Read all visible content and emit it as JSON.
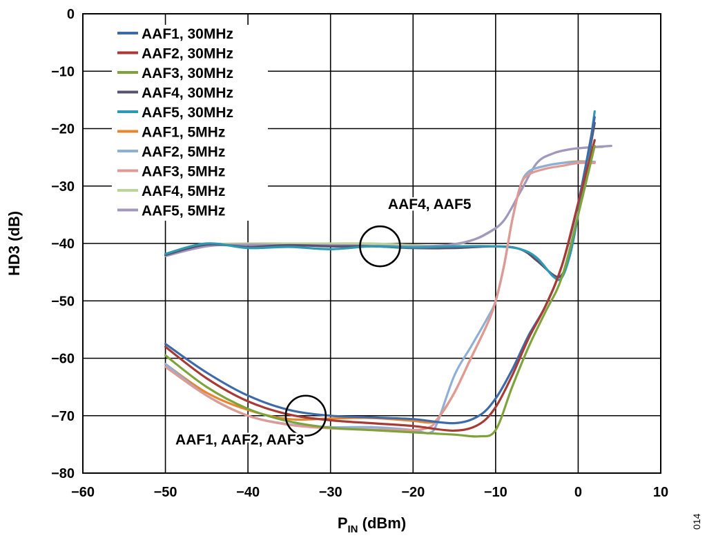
{
  "chart_data": {
    "type": "line",
    "xlabel": "P",
    "xlabel_sub": "IN",
    "xlabel_unit": " (dBm)",
    "ylabel": "HD3 (dB)",
    "xlim": [
      -60,
      10
    ],
    "ylim": [
      -80,
      0
    ],
    "xticks": [
      -60,
      -50,
      -40,
      -30,
      -20,
      -10,
      0,
      10
    ],
    "yticks": [
      0,
      -10,
      -20,
      -30,
      -40,
      -50,
      -60,
      -70,
      -80
    ],
    "xtick_labels": [
      "−60",
      "−50",
      "−40",
      "−30",
      "−20",
      "−10",
      "0",
      "10"
    ],
    "ytick_labels": [
      "0",
      "−10",
      "−20",
      "−30",
      "−40",
      "−50",
      "−60",
      "−70",
      "−80"
    ],
    "grid": true,
    "legend_position": "top-left",
    "annotations": [
      {
        "text": "AAF4, AAF5",
        "circle_at": [
          -24,
          -40.5
        ],
        "text_at": [
          -18,
          -34
        ]
      },
      {
        "text": "AAF1, AAF2, AAF3",
        "circle_at": [
          -33,
          -70
        ],
        "text_at": [
          -41,
          -75
        ]
      }
    ],
    "side_code": "014",
    "series": [
      {
        "name": "AAF1, 30MHz",
        "color": "#3f6aa8",
        "x": [
          -50,
          -45,
          -40,
          -35,
          -30,
          -25,
          -20,
          -15,
          -12,
          -10,
          -8,
          -6,
          -4,
          -2,
          0,
          2
        ],
        "y": [
          -57.5,
          -62.5,
          -66.5,
          -69,
          -70,
          -70.3,
          -70.6,
          -71.3,
          -70,
          -67,
          -62,
          -56,
          -51,
          -44,
          -33,
          -18
        ]
      },
      {
        "name": "AAF2, 30MHz",
        "color": "#a83a35",
        "x": [
          -50,
          -45,
          -40,
          -35,
          -30,
          -25,
          -20,
          -15,
          -12,
          -10,
          -8,
          -6,
          -4,
          -2,
          0,
          2
        ],
        "y": [
          -58,
          -63.5,
          -67.5,
          -69.8,
          -70.8,
          -71.3,
          -71.8,
          -72.6,
          -71.5,
          -68.5,
          -63,
          -56.5,
          -51,
          -44,
          -33,
          -22
        ]
      },
      {
        "name": "AAF3, 30MHz",
        "color": "#7fa33b",
        "x": [
          -50,
          -45,
          -40,
          -35,
          -30,
          -25,
          -20,
          -15,
          -12,
          -10,
          -8,
          -6,
          -4,
          -2,
          0,
          2
        ],
        "y": [
          -59.5,
          -65,
          -68.8,
          -71,
          -72.1,
          -72.5,
          -72.9,
          -73.3,
          -73.6,
          -72.5,
          -65,
          -58,
          -52,
          -46,
          -35,
          -23
        ]
      },
      {
        "name": "AAF4, 30MHz",
        "color": "#5a4f6e",
        "x": [
          -50,
          -45,
          -40,
          -35,
          -30,
          -25,
          -20,
          -15,
          -10,
          -7,
          -5,
          -3,
          -2,
          -1,
          0,
          1,
          2
        ],
        "y": [
          -42,
          -40.2,
          -40.6,
          -40.3,
          -40.5,
          -40.5,
          -40.8,
          -40.8,
          -40.5,
          -41,
          -43,
          -45.5,
          -45.5,
          -42,
          -35,
          -27,
          -19
        ]
      },
      {
        "name": "AAF5, 30MHz",
        "color": "#2d9ab3",
        "x": [
          -50,
          -45,
          -40,
          -35,
          -30,
          -25,
          -20,
          -15,
          -10,
          -7,
          -5,
          -3,
          -2,
          -1,
          0,
          1,
          2
        ],
        "y": [
          -41.8,
          -40,
          -40.8,
          -40.6,
          -41,
          -40.5,
          -40.7,
          -40.5,
          -40.5,
          -41,
          -42.5,
          -45.8,
          -46,
          -42,
          -35,
          -27,
          -17
        ]
      },
      {
        "name": "AAF1, 5MHz",
        "color": "#e8852f",
        "x": [
          -50,
          -45,
          -40,
          -35,
          -30,
          -25,
          -20,
          -18,
          -17,
          -15,
          -13,
          -11,
          -10,
          -9,
          -8,
          -7,
          -6,
          -4,
          -2,
          0,
          2
        ],
        "y": [
          -61,
          -66,
          -69,
          -70.6,
          -70.5,
          -70.4,
          -70.9,
          -71.2,
          -70.5,
          -66,
          -60,
          -54,
          -50,
          -44,
          -36,
          -30,
          -27.5,
          -26.5,
          -26,
          -25.7,
          -25.8
        ]
      },
      {
        "name": "AAF2, 5MHz",
        "color": "#8eb0d8",
        "x": [
          -50,
          -45,
          -40,
          -35,
          -30,
          -25,
          -20,
          -18,
          -17,
          -15,
          -13,
          -11,
          -10,
          -9,
          -8,
          -7,
          -6,
          -4,
          -2,
          0,
          2
        ],
        "y": [
          -61,
          -66.5,
          -70,
          -71.5,
          -72,
          -72,
          -72.5,
          -73,
          -71,
          -63,
          -58,
          -53,
          -50,
          -44,
          -36,
          -30,
          -27.5,
          -26.5,
          -26,
          -25.8,
          -25.8
        ]
      },
      {
        "name": "AAF3, 5MHz",
        "color": "#e09a96",
        "x": [
          -50,
          -45,
          -40,
          -35,
          -30,
          -25,
          -20,
          -18,
          -17,
          -15,
          -13,
          -11,
          -10,
          -9,
          -8,
          -7,
          -6,
          -4,
          -2,
          0,
          2
        ],
        "y": [
          -61.5,
          -66.5,
          -70,
          -71.6,
          -72.2,
          -72.4,
          -72.5,
          -72,
          -70.5,
          -66,
          -60,
          -54,
          -50,
          -44,
          -36,
          -30,
          -28,
          -27,
          -26.5,
          -26,
          -26
        ]
      },
      {
        "name": "AAF4, 5MHz",
        "color": "#bcd39c",
        "x": [
          -50,
          -45,
          -40,
          -35,
          -30,
          -25,
          -20,
          -16,
          -13,
          -11,
          -9,
          -7,
          -5,
          -3,
          -1,
          1,
          3
        ],
        "y": [
          -42,
          -40.3,
          -40,
          -40,
          -40,
          -40,
          -40.3,
          -40.5,
          -39.5,
          -38.3,
          -36,
          -31,
          -26,
          -24.3,
          -23.6,
          -23.3,
          -23.2
        ]
      },
      {
        "name": "AAF5, 5MHz",
        "color": "#a297bd",
        "x": [
          -50,
          -45,
          -40,
          -35,
          -30,
          -25,
          -20,
          -16,
          -13,
          -11,
          -9,
          -7,
          -5,
          -3,
          -1,
          1,
          4
        ],
        "y": [
          -42.2,
          -40.5,
          -40.2,
          -40.3,
          -40.3,
          -40.4,
          -40.5,
          -40.3,
          -39.5,
          -38.2,
          -36,
          -31,
          -26,
          -24.3,
          -23.6,
          -23.3,
          -23
        ]
      }
    ]
  }
}
